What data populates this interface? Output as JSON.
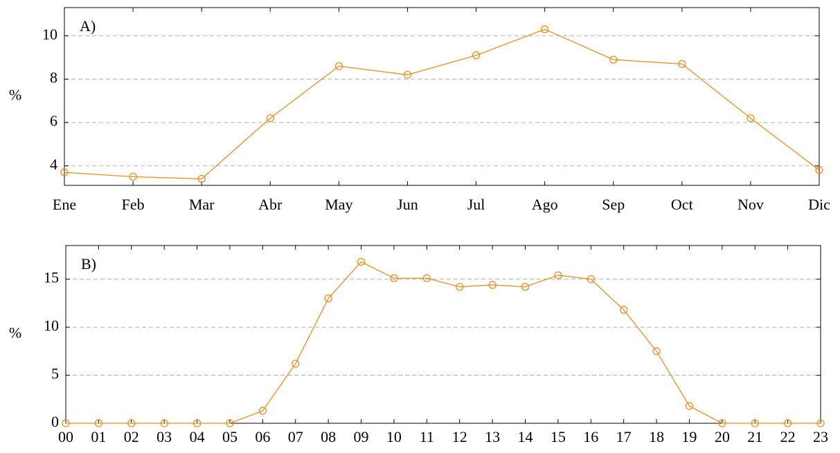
{
  "chart_data": [
    {
      "type": "line",
      "annotation": "A)",
      "y_label": "%",
      "categories": [
        "Ene",
        "Feb",
        "Mar",
        "Abr",
        "May",
        "Jun",
        "Jul",
        "Ago",
        "Sep",
        "Oct",
        "Nov",
        "Dic"
      ],
      "values": [
        3.7,
        3.5,
        3.4,
        6.2,
        8.6,
        8.2,
        9.1,
        10.3,
        8.9,
        8.7,
        6.2,
        3.8
      ],
      "color": "#f28c1c",
      "ylim": [
        3.1,
        11.3
      ],
      "yticks": [
        4,
        6,
        8,
        10
      ],
      "grid": true
    },
    {
      "type": "line",
      "annotation": "B)",
      "y_label": "%",
      "categories": [
        "00",
        "01",
        "02",
        "03",
        "04",
        "05",
        "06",
        "07",
        "08",
        "09",
        "10",
        "11",
        "12",
        "13",
        "14",
        "15",
        "16",
        "17",
        "18",
        "19",
        "20",
        "21",
        "22",
        "23"
      ],
      "values": [
        0,
        0,
        0,
        0,
        0,
        0,
        1.3,
        6.2,
        13.0,
        16.8,
        15.1,
        15.1,
        14.2,
        14.4,
        14.2,
        15.4,
        15.0,
        11.8,
        7.5,
        1.8,
        0,
        0,
        0,
        0
      ],
      "color": "#f28c1c",
      "ylim": [
        0,
        18.5
      ],
      "yticks": [
        0,
        5,
        10,
        15
      ],
      "grid": true
    }
  ]
}
